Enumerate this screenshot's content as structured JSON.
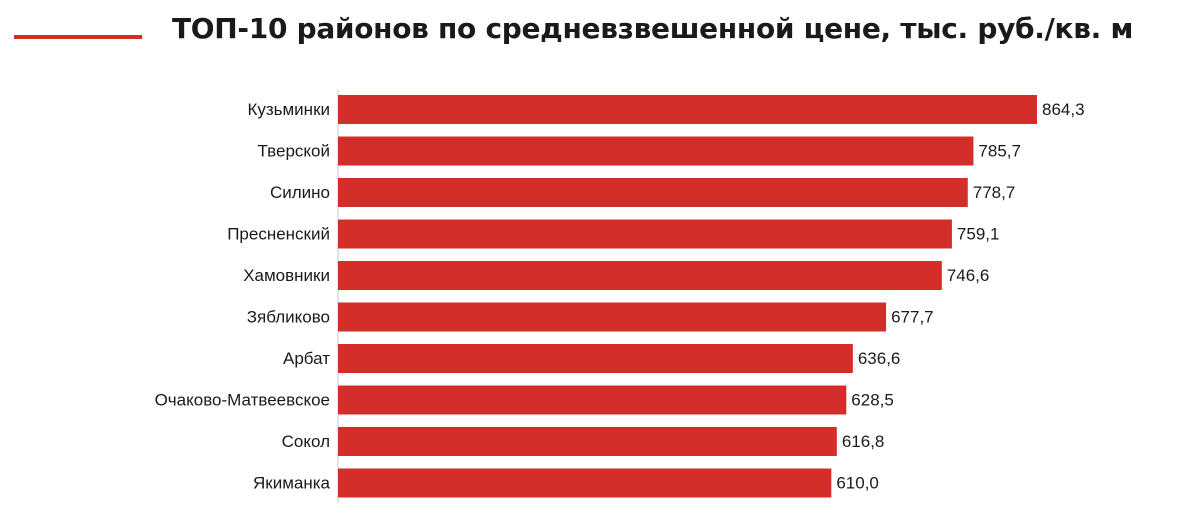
{
  "chart_data": {
    "type": "bar",
    "orientation": "horizontal",
    "title": "ТОП-10 районов по средневзвешенной цене, тыс. руб./кв. м",
    "categories": [
      "Кузьминки",
      "Тверской",
      "Силино",
      "Пресненский",
      "Хамовники",
      "Зябликово",
      "Арбат",
      "Очаково-Матвеевское",
      "Сокол",
      "Якиманка"
    ],
    "values": [
      864.3,
      785.7,
      778.7,
      759.1,
      746.6,
      677.7,
      636.6,
      628.5,
      616.8,
      610.0
    ],
    "value_labels": [
      "864,3",
      "785,7",
      "778,7",
      "759,1",
      "746,6",
      "677,7",
      "636,6",
      "628,5",
      "616,8",
      "610,0"
    ],
    "xlim": [
      0,
      864.3
    ],
    "grid": false,
    "legend": "none",
    "bar_color": "#d42e2a",
    "axis_color": "#c8c8c8",
    "accent_color": "#d42e2a"
  }
}
